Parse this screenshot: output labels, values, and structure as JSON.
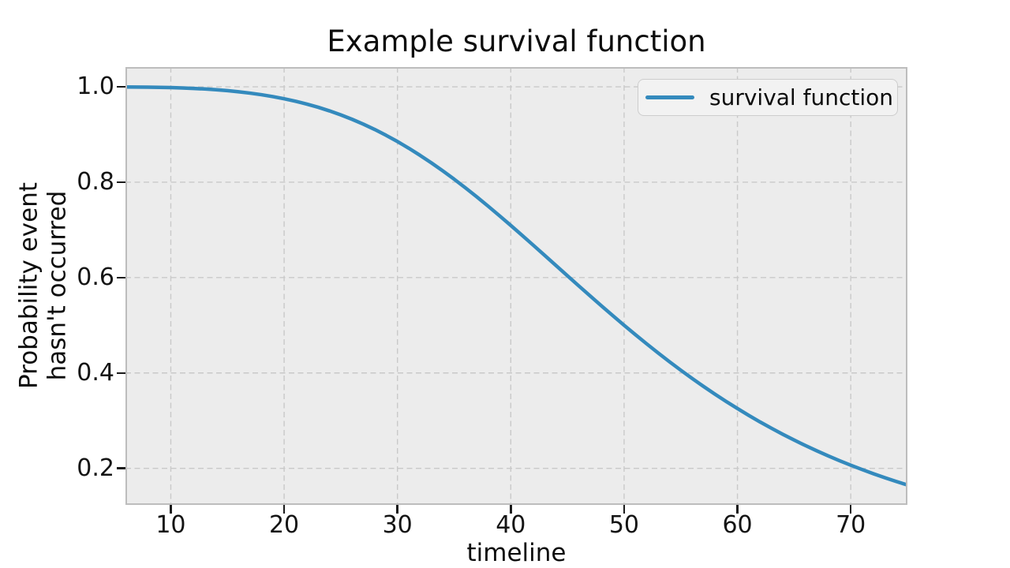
{
  "figure": {
    "title": "Example survival function",
    "xlabel": "timeline",
    "ylabel_line1": "Probability event",
    "ylabel_line2": "hasn't occurred"
  },
  "legend": {
    "label": "survival function"
  },
  "colors": {
    "line": "#348ABD",
    "axes_bg": "#ececec",
    "grid": "#c9c9c9",
    "spine": "#bdbdbd",
    "tick": "#1a1a1a",
    "text": "#0d0d0d",
    "legend_bg": "#f2f2f2",
    "legend_border": "#cdcdcd"
  },
  "chart_data": {
    "type": "line",
    "title": "Example survival function",
    "xlabel": "timeline",
    "ylabel": "Probability event\nhasn't occurred",
    "xlim": [
      6,
      75
    ],
    "ylim": [
      0.1233,
      1.0415
    ],
    "xticks": [
      10,
      20,
      30,
      40,
      50,
      60,
      70
    ],
    "xtick_labels": [
      "10",
      "20",
      "30",
      "40",
      "50",
      "60",
      "70"
    ],
    "yticks": [
      0.2,
      0.4,
      0.6,
      0.8,
      1.0
    ],
    "ytick_labels": [
      "0.2",
      "0.4",
      "0.6",
      "0.8",
      "1.0"
    ],
    "grid": "dashed",
    "legend_position": "upper right",
    "series": [
      {
        "name": "survival function",
        "color": "#348ABD",
        "x": [
          6,
          7,
          8,
          9,
          10,
          11,
          12,
          13,
          14,
          15,
          16,
          17,
          18,
          19,
          20,
          21,
          22,
          23,
          24,
          25,
          26,
          27,
          28,
          29,
          30,
          31,
          32,
          33,
          34,
          35,
          36,
          37,
          38,
          39,
          40,
          41,
          42,
          43,
          44,
          45,
          46,
          47,
          48,
          49,
          50,
          51,
          52,
          53,
          54,
          55,
          56,
          57,
          58,
          59,
          60,
          61,
          62,
          63,
          64,
          65,
          66,
          67,
          68,
          69,
          70,
          71,
          72,
          73,
          74,
          75
        ],
        "y": [
          0.9998,
          0.9996,
          0.9993,
          0.999,
          0.9984,
          0.9977,
          0.9967,
          0.9955,
          0.9939,
          0.992,
          0.9896,
          0.9868,
          0.9835,
          0.9796,
          0.975,
          0.9698,
          0.9639,
          0.9572,
          0.9496,
          0.9412,
          0.9319,
          0.9216,
          0.9105,
          0.8983,
          0.8853,
          0.8713,
          0.8563,
          0.8405,
          0.8238,
          0.8064,
          0.7882,
          0.7693,
          0.7498,
          0.7298,
          0.7094,
          0.6886,
          0.6676,
          0.6464,
          0.6251,
          0.6038,
          0.5826,
          0.5616,
          0.5407,
          0.5202,
          0.5,
          0.4802,
          0.4609,
          0.442,
          0.4236,
          0.4058,
          0.3886,
          0.3719,
          0.3558,
          0.3403,
          0.3254,
          0.311,
          0.2972,
          0.2841,
          0.2714,
          0.2593,
          0.2478,
          0.2367,
          0.2262,
          0.2161,
          0.2065,
          0.1974,
          0.1887,
          0.1804,
          0.1725,
          0.165
        ]
      }
    ]
  }
}
